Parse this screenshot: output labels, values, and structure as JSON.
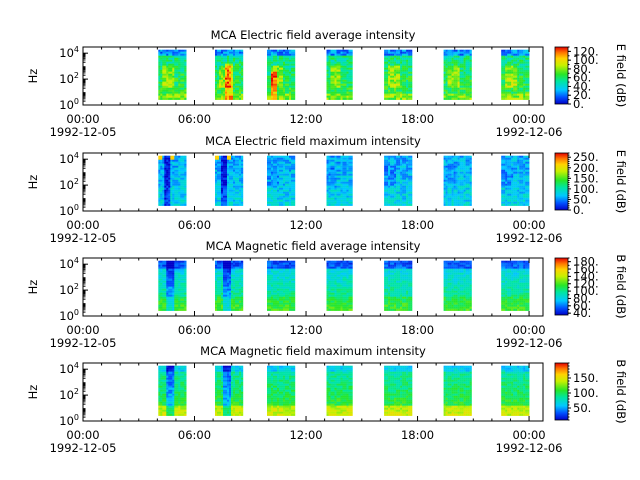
{
  "figure": {
    "time_ticks": [
      "00:00",
      "06:00",
      "12:00",
      "18:00",
      "00:00"
    ],
    "date_start": "1992-12-05",
    "date_end": "1992-12-06",
    "y_axis_label": "Hz",
    "y_ticks": [
      "10",
      "10",
      "10"
    ],
    "y_tick_exponents": [
      "0",
      "2",
      "4"
    ]
  },
  "chart_data": [
    {
      "type": "heatmap",
      "title": "MCA  Electric field average intensity",
      "xlabel": "",
      "ylabel": "Hz",
      "yscale": "log",
      "ylim": [
        1,
        30000
      ],
      "x_range_hours": [
        0,
        24.75
      ],
      "colorbar_label": "E field (dB)",
      "colorbar_ticks": [
        "0.",
        "20.",
        "40.",
        "60.",
        "80.",
        "100.",
        "120."
      ],
      "colorbar_range": [
        0,
        130
      ],
      "data_segments_hours": [
        [
          4.05,
          5.45
        ],
        [
          7.1,
          8.5
        ],
        [
          9.9,
          11.3
        ],
        [
          13.1,
          14.4
        ],
        [
          16.2,
          17.6
        ],
        [
          19.4,
          20.8
        ],
        [
          22.5,
          23.9
        ]
      ],
      "profile": "elec_avg"
    },
    {
      "type": "heatmap",
      "title": "MCA  Electric field maximum intensity",
      "xlabel": "",
      "ylabel": "Hz",
      "yscale": "log",
      "ylim": [
        1,
        30000
      ],
      "x_range_hours": [
        0,
        24.75
      ],
      "colorbar_label": "E field (dB)",
      "colorbar_ticks": [
        "0.",
        "50.",
        "100.",
        "150.",
        "200.",
        "250."
      ],
      "colorbar_range": [
        0,
        270
      ],
      "data_segments_hours": [
        [
          4.05,
          5.45
        ],
        [
          7.1,
          8.5
        ],
        [
          9.9,
          11.3
        ],
        [
          13.1,
          14.4
        ],
        [
          16.2,
          17.6
        ],
        [
          19.4,
          20.8
        ],
        [
          22.5,
          23.9
        ]
      ],
      "profile": "elec_max"
    },
    {
      "type": "heatmap",
      "title": "MCA  Magnetic field average intensity",
      "xlabel": "",
      "ylabel": "Hz",
      "yscale": "log",
      "ylim": [
        1,
        30000
      ],
      "x_range_hours": [
        0,
        24.75
      ],
      "colorbar_label": "B field (dB)",
      "colorbar_ticks": [
        "40.",
        "60.",
        "80.",
        "100.",
        "120.",
        "140.",
        "160.",
        "180."
      ],
      "colorbar_range": [
        35,
        190
      ],
      "data_segments_hours": [
        [
          4.05,
          5.45
        ],
        [
          7.1,
          8.5
        ],
        [
          9.9,
          11.3
        ],
        [
          13.1,
          14.4
        ],
        [
          16.2,
          17.6
        ],
        [
          19.4,
          20.8
        ],
        [
          22.5,
          23.9
        ]
      ],
      "profile": "mag_avg"
    },
    {
      "type": "heatmap",
      "title": "MCA  Magnetic field maximum intensity",
      "xlabel": "",
      "ylabel": "Hz",
      "yscale": "log",
      "ylim": [
        1,
        30000
      ],
      "x_range_hours": [
        0,
        24.75
      ],
      "colorbar_label": "B field (dB)",
      "colorbar_ticks": [
        "50.",
        "100.",
        "150."
      ],
      "colorbar_range": [
        10,
        200
      ],
      "data_segments_hours": [
        [
          4.05,
          5.45
        ],
        [
          7.1,
          8.5
        ],
        [
          9.9,
          11.3
        ],
        [
          13.1,
          14.4
        ],
        [
          16.2,
          17.6
        ],
        [
          19.4,
          20.8
        ],
        [
          22.5,
          23.9
        ]
      ],
      "profile": "mag_max"
    }
  ]
}
